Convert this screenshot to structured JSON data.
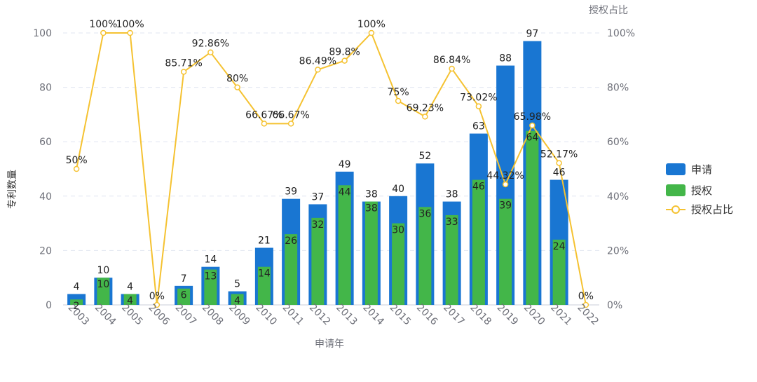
{
  "chart_data": {
    "type": "bar",
    "categories": [
      "2003",
      "2004",
      "2005",
      "2006",
      "2007",
      "2008",
      "2009",
      "2010",
      "2011",
      "2012",
      "2013",
      "2014",
      "2015",
      "2016",
      "2017",
      "2018",
      "2019",
      "2020",
      "2021",
      "2022"
    ],
    "series": [
      {
        "name": "申请",
        "type": "bar",
        "values": [
          4,
          10,
          4,
          0,
          7,
          14,
          5,
          21,
          39,
          37,
          49,
          38,
          40,
          52,
          38,
          63,
          88,
          97,
          46,
          0
        ]
      },
      {
        "name": "授权",
        "type": "bar",
        "values": [
          2,
          10,
          4,
          0,
          6,
          13,
          4,
          14,
          26,
          32,
          44,
          38,
          30,
          36,
          33,
          46,
          39,
          64,
          24,
          0
        ]
      },
      {
        "name": "授权占比",
        "type": "line",
        "axis": "right",
        "values": [
          50,
          100,
          100,
          0,
          85.71,
          92.86,
          80,
          66.67,
          66.67,
          86.49,
          89.8,
          100,
          75,
          69.23,
          86.84,
          73.02,
          44.32,
          65.98,
          52.17,
          0
        ],
        "labels": [
          "50%",
          "100%",
          "100%",
          "0%",
          "85.71%",
          "92.86%",
          "80%",
          "66.67%",
          "66.67%",
          "86.49%",
          "89.8%",
          "100%",
          "75%",
          "69.23%",
          "86.84%",
          "73.02%",
          "44.32%",
          "65.98%",
          "52.17%",
          "0%"
        ]
      }
    ],
    "bar_labels": {
      "apply": [
        "4",
        "10",
        "4",
        "",
        "7",
        "14",
        "5",
        "21",
        "39",
        "37",
        "49",
        "38",
        "40",
        "52",
        "38",
        "63",
        "88",
        "97",
        "46",
        ""
      ],
      "grant": [
        "2",
        "10",
        "4",
        "",
        "6",
        "13",
        "4",
        "14",
        "26",
        "32",
        "44",
        "38",
        "30",
        "36",
        "33",
        "46",
        "39",
        "64",
        "24",
        ""
      ]
    },
    "xlabel": "申请年",
    "ylabel": "专利数量",
    "y2label": "授权占比",
    "ylim": [
      0,
      100
    ],
    "y2lim": [
      0,
      100
    ],
    "yticks": [
      "0",
      "20",
      "40",
      "60",
      "80",
      "100"
    ],
    "y2ticks": [
      "0%",
      "20%",
      "40%",
      "60%",
      "80%",
      "100%"
    ],
    "grid": true,
    "legend_position": "right",
    "colors": {
      "apply": "#1976d2",
      "grant": "#43b649",
      "ratio": "#f5c231",
      "axis_text": "#6e7079",
      "grid": "#e0e6f1"
    }
  }
}
